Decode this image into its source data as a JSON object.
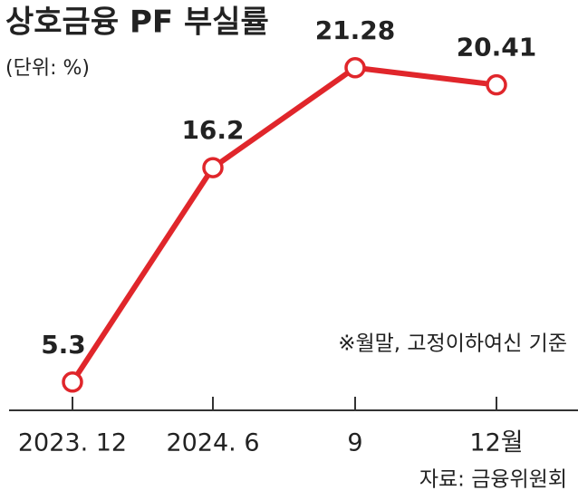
{
  "chart_data": {
    "type": "line",
    "title": "상호금융 PF 부실률",
    "subtitle": "(단위: %)",
    "annotation": "※월말, 고정이하여신 기준",
    "source": "자료: 금융위원회",
    "categories": [
      "2023. 12",
      "2024. 6",
      "9",
      "12월"
    ],
    "values": [
      5.3,
      16.2,
      21.28,
      20.41
    ],
    "color": "#e0262b",
    "ylim": [
      4,
      21.5
    ],
    "grid": false
  }
}
